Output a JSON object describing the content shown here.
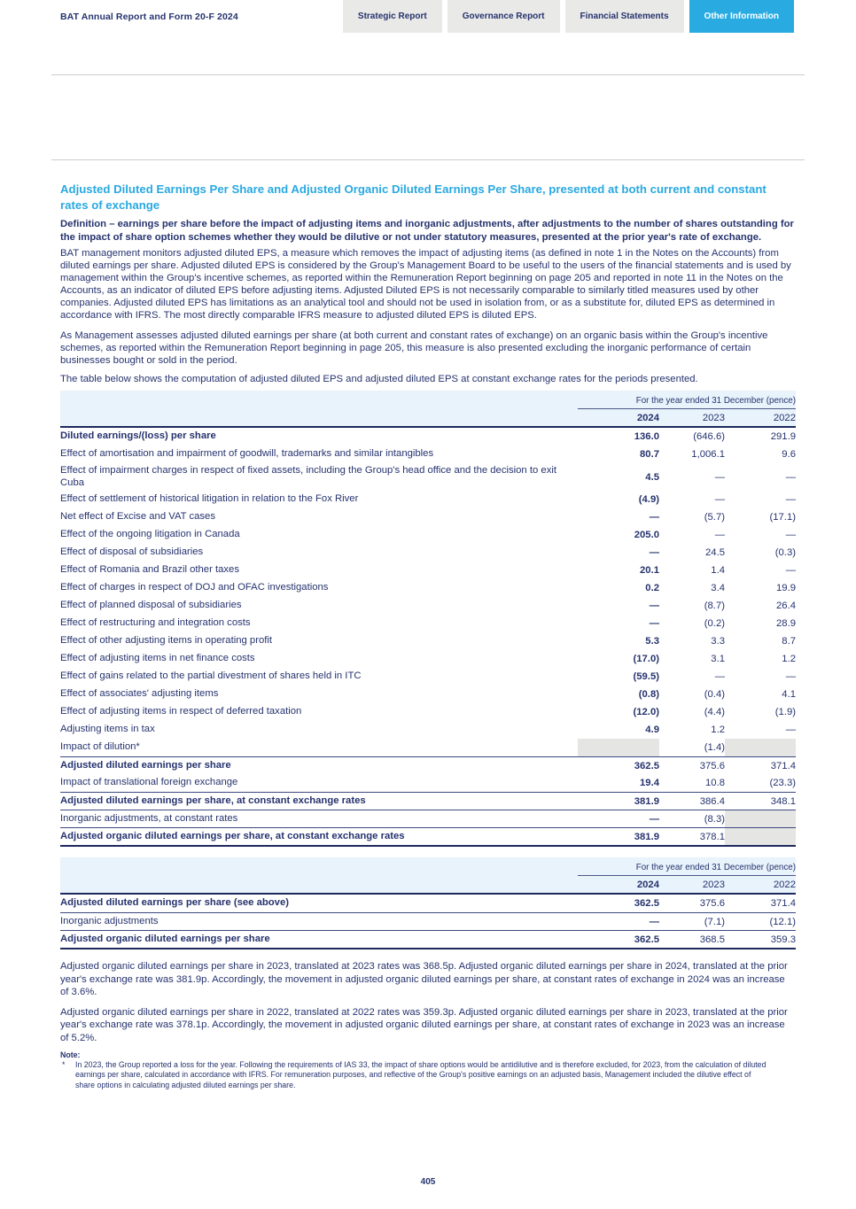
{
  "header": {
    "brand": "BAT Annual Report and Form 20-F 2024",
    "tabs": [
      {
        "label": "Strategic Report",
        "active": false
      },
      {
        "label": "Governance Report",
        "active": false
      },
      {
        "label": "Financial Statements",
        "active": false
      },
      {
        "label": "Other Information",
        "active": true
      }
    ]
  },
  "colors": {
    "accent_cyan": "#29abe2",
    "navy_text": "#26336e",
    "table_band_blue": "#e8f3fb",
    "shaded_cell_gray": "#e5e5e3",
    "tab_gray": "#e9e9e7"
  },
  "main": {
    "title": "Adjusted Diluted Earnings Per Share and Adjusted Organic Diluted Earnings Per Share, presented at both current and constant rates of exchange",
    "definition": "Definition – earnings per share before the impact of adjusting items and inorganic adjustments, after adjustments to the number of shares outstanding for the impact of share option schemes whether they would be dilutive or not under statutory measures, presented at the prior year's rate of exchange.",
    "para1": "BAT management monitors adjusted diluted EPS, a measure which removes the impact of adjusting items (as defined in note 1 in the Notes on the Accounts) from diluted earnings per share. Adjusted diluted EPS is considered by the Group's Management Board to be useful to the users of the financial statements and is used by management within the Group's incentive schemes, as reported within the Remuneration Report beginning on page 205 and reported in note 11 in the Notes on the Accounts, as an indicator of diluted EPS before adjusting items. Adjusted Diluted EPS is not necessarily comparable to similarly titled measures used by other companies. Adjusted diluted EPS has limitations as an analytical tool and should not be used in isolation from, or as a substitute for, diluted EPS as determined in accordance with IFRS. The most directly comparable IFRS measure to adjusted diluted EPS is diluted EPS.",
    "para2": "As Management assesses adjusted diluted earnings per share (at both current and constant rates of exchange) on an organic basis within the Group's incentive schemes, as reported within the Remuneration Report beginning in page 205, this measure is also presented excluding the inorganic performance of certain businesses bought or sold in the period.",
    "para3": "The table below shows the computation of adjusted diluted EPS and adjusted diluted EPS at constant exchange rates for the periods presented.",
    "after1": "Adjusted organic diluted earnings per share in 2023, translated at 2023 rates was 368.5p. Adjusted organic diluted earnings per share in 2024, translated at the prior year's exchange rate was 381.9p. Accordingly, the movement in adjusted organic diluted earnings per share, at constant rates of exchange in 2024 was an increase of 3.6%.",
    "after2": "Adjusted organic diluted earnings per share in 2022, translated at 2022 rates was 359.3p. Adjusted organic diluted earnings per share in 2023, translated at the prior year's exchange rate was 378.1p. Accordingly, the movement in adjusted organic diluted earnings per share, at constant rates of exchange in 2023 was an increase of 5.2%.",
    "note_label": "Note:",
    "note_marker": "*",
    "note_text": "In 2023, the Group reported a loss for the year. Following the requirements of IAS 33, the impact of share options would be antidilutive and is therefore excluded, for 2023, from the calculation of diluted earnings per share, calculated in accordance with IFRS. For remuneration purposes, and reflective of the Group's positive earnings on an adjusted basis, Management included the dilutive effect of share options in calculating adjusted diluted earnings per share."
  },
  "table1": {
    "period_header": "For the year ended 31 December (pence)",
    "years": [
      "2024",
      "2023",
      "2022"
    ],
    "rows": [
      {
        "label": "Diluted earnings/(loss) per share",
        "bold": true,
        "values": [
          "136.0",
          "(646.6)",
          "291.9"
        ]
      },
      {
        "label": "Effect of amortisation and impairment of goodwill, trademarks and similar intangibles",
        "values": [
          "80.7",
          "1,006.1",
          "9.6"
        ]
      },
      {
        "label": "Effect of impairment charges in respect of fixed assets, including the Group's head office and the decision to exit Cuba",
        "values": [
          "4.5",
          "—",
          "—"
        ]
      },
      {
        "label": "Effect of settlement of historical litigation in relation to the Fox River",
        "values": [
          "(4.9)",
          "—",
          "—"
        ]
      },
      {
        "label": "Net effect of Excise and VAT cases",
        "values": [
          "—",
          "(5.7)",
          "(17.1)"
        ]
      },
      {
        "label": "Effect of the ongoing litigation in Canada",
        "values": [
          "205.0",
          "—",
          "—"
        ]
      },
      {
        "label": "Effect of disposal of subsidiaries",
        "values": [
          "—",
          "24.5",
          "(0.3)"
        ]
      },
      {
        "label": "Effect of Romania and Brazil other taxes",
        "values": [
          "20.1",
          "1.4",
          "—"
        ]
      },
      {
        "label": "Effect of charges in respect of DOJ and OFAC investigations",
        "values": [
          "0.2",
          "3.4",
          "19.9"
        ]
      },
      {
        "label": "Effect of planned disposal of subsidiaries",
        "values": [
          "—",
          "(8.7)",
          "26.4"
        ]
      },
      {
        "label": "Effect of restructuring and integration costs",
        "values": [
          "—",
          "(0.2)",
          "28.9"
        ]
      },
      {
        "label": "Effect of other adjusting items in operating profit",
        "values": [
          "5.3",
          "3.3",
          "8.7"
        ]
      },
      {
        "label": "Effect of adjusting items in net finance costs",
        "values": [
          "(17.0)",
          "3.1",
          "1.2"
        ]
      },
      {
        "label": "Effect of gains related to the partial divestment of shares held in ITC",
        "values": [
          "(59.5)",
          "—",
          "—"
        ]
      },
      {
        "label": "Effect of associates' adjusting items",
        "values": [
          "(0.8)",
          "(0.4)",
          "4.1"
        ]
      },
      {
        "label": "Effect of adjusting items in respect of deferred taxation",
        "values": [
          "(12.0)",
          "(4.4)",
          "(1.9)"
        ]
      },
      {
        "label": "Adjusting items in tax",
        "values": [
          "4.9",
          "1.2",
          "—"
        ]
      },
      {
        "label": "Impact of dilution*",
        "values": [
          "",
          "(1.4)",
          ""
        ],
        "shaded": [
          true,
          false,
          true
        ]
      },
      {
        "label": "Adjusted diluted earnings per share",
        "bold": true,
        "rule_above": true,
        "values": [
          "362.5",
          "375.6",
          "371.4"
        ]
      },
      {
        "label": "Impact of translational foreign exchange",
        "values": [
          "19.4",
          "10.8",
          "(23.3)"
        ]
      },
      {
        "label": "Adjusted diluted earnings per share, at constant exchange rates",
        "bold": true,
        "rule_above": true,
        "values": [
          "381.9",
          "386.4",
          "348.1"
        ]
      },
      {
        "label": "Inorganic adjustments, at constant rates",
        "rule_above": true,
        "values": [
          "—",
          "(8.3)",
          ""
        ],
        "shaded": [
          false,
          false,
          true
        ]
      },
      {
        "label": "Adjusted organic diluted earnings per share, at constant exchange rates",
        "bold": true,
        "rule_above": true,
        "values": [
          "381.9",
          "378.1",
          ""
        ],
        "shaded": [
          false,
          false,
          true
        ]
      }
    ]
  },
  "table2": {
    "period_header": "For the year ended 31 December (pence)",
    "years": [
      "2024",
      "2023",
      "2022"
    ],
    "rows": [
      {
        "label": "Adjusted diluted earnings per share (see above)",
        "bold": true,
        "values": [
          "362.5",
          "375.6",
          "371.4"
        ]
      },
      {
        "label": "Inorganic adjustments",
        "rule_above": true,
        "values": [
          "—",
          "(7.1)",
          "(12.1)"
        ]
      },
      {
        "label": "Adjusted organic diluted earnings per share",
        "bold": true,
        "rule_above": true,
        "values": [
          "362.5",
          "368.5",
          "359.3"
        ]
      }
    ]
  },
  "footer": {
    "page_number": "405"
  }
}
